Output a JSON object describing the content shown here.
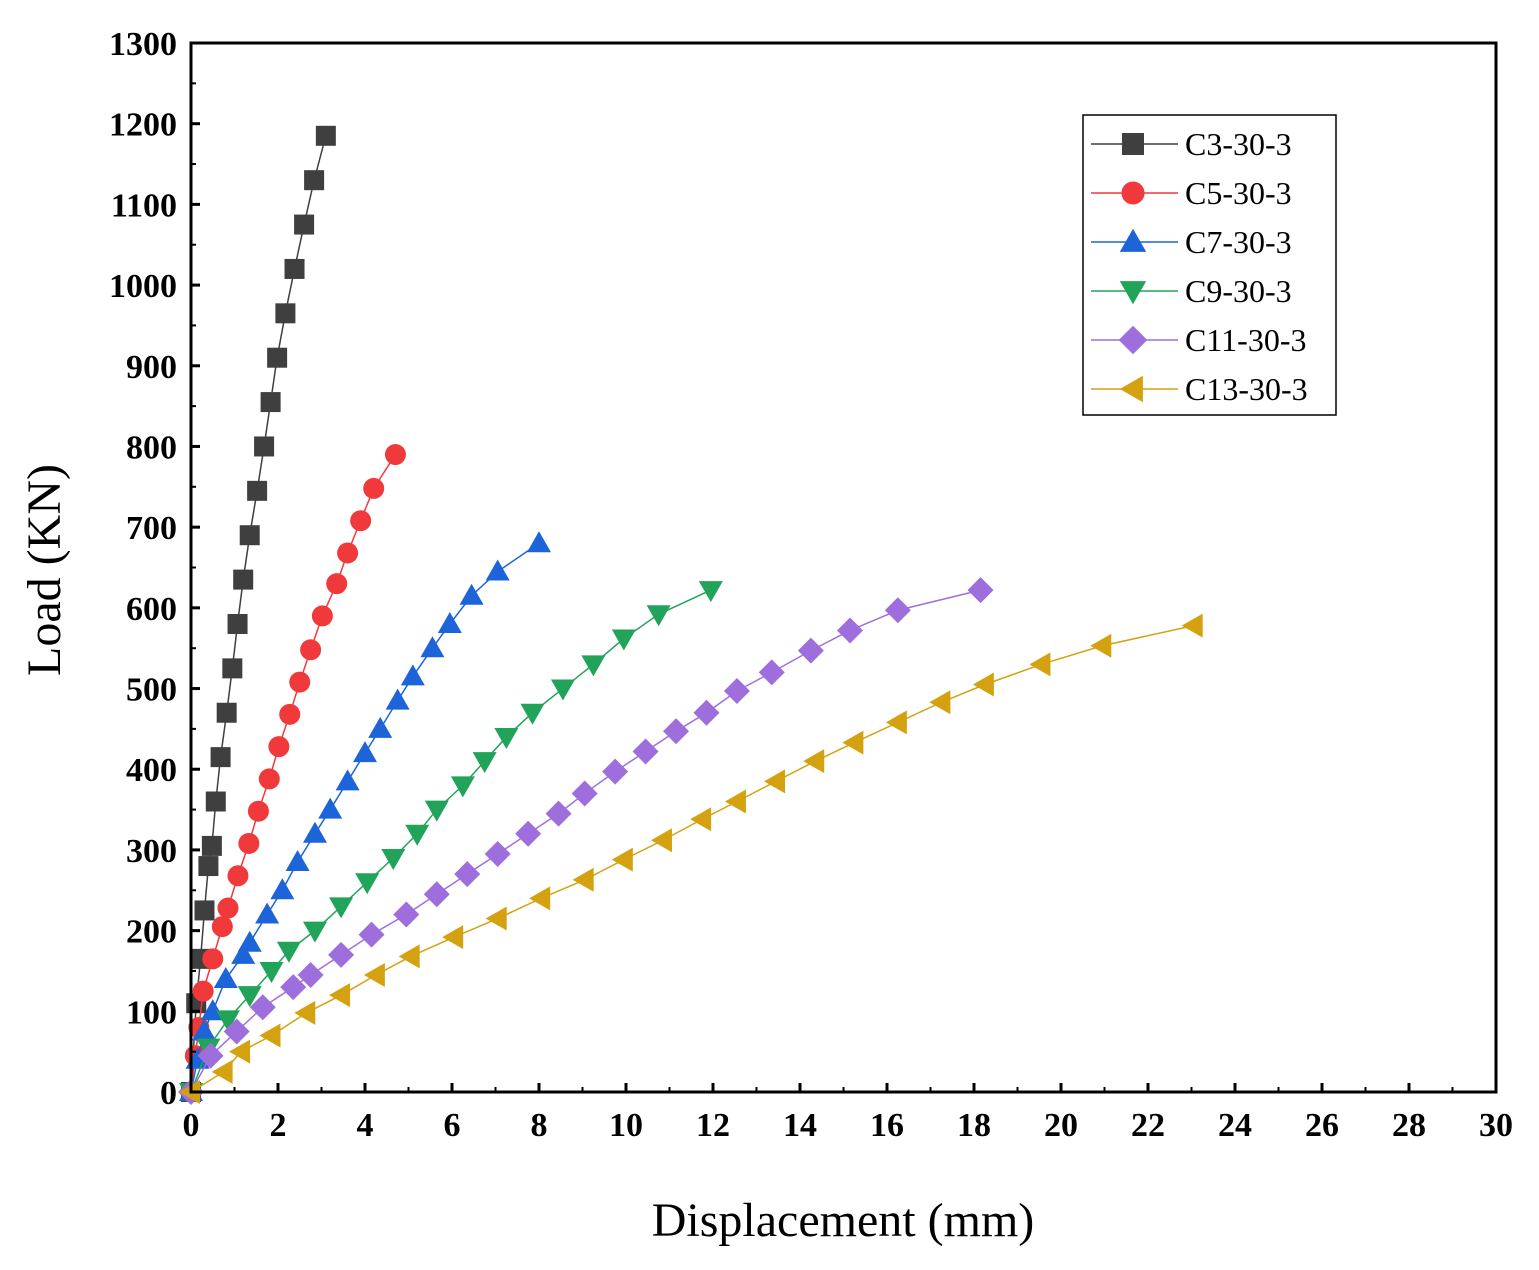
{
  "chart_data": {
    "type": "line",
    "title": "",
    "xlabel": "Displacement (mm)",
    "ylabel": "Load (KN)",
    "xlim": [
      0,
      30
    ],
    "ylim": [
      0,
      1300
    ],
    "x_ticks": [
      0,
      2,
      4,
      6,
      8,
      10,
      12,
      14,
      16,
      18,
      20,
      22,
      24,
      26,
      28,
      30
    ],
    "y_ticks": [
      0,
      100,
      200,
      300,
      400,
      500,
      600,
      700,
      800,
      900,
      1000,
      1100,
      1200,
      1300
    ],
    "x_tick_labels": [
      "0",
      "2",
      "4",
      "6",
      "8",
      "10",
      "12",
      "14",
      "16",
      "18",
      "20",
      "22",
      "24",
      "26",
      "28",
      "30"
    ],
    "y_tick_labels": [
      "0",
      "100",
      "200",
      "300",
      "400",
      "500",
      "600",
      "700",
      "800",
      "900",
      "1000",
      "1100",
      "1200",
      "1300"
    ],
    "grid": false,
    "legend_position": "top-right",
    "series": [
      {
        "name": "C3-30-3",
        "color": "#3f3f3f",
        "marker": "square",
        "x": [
          0.0,
          0.12,
          0.22,
          0.31,
          0.4,
          0.48,
          0.57,
          0.68,
          0.82,
          0.95,
          1.07,
          1.2,
          1.35,
          1.52,
          1.68,
          1.83,
          1.98,
          2.17,
          2.38,
          2.6,
          2.83,
          3.1
        ],
        "y": [
          0,
          110,
          165,
          225,
          280,
          305,
          360,
          415,
          470,
          525,
          580,
          635,
          690,
          745,
          800,
          855,
          910,
          965,
          1020,
          1075,
          1130,
          1185
        ]
      },
      {
        "name": "C5-30-3",
        "color": "#f0393b",
        "marker": "circle",
        "x": [
          0.0,
          0.1,
          0.18,
          0.28,
          0.5,
          0.72,
          0.85,
          1.08,
          1.33,
          1.55,
          1.8,
          2.02,
          2.27,
          2.5,
          2.75,
          3.02,
          3.35,
          3.6,
          3.9,
          4.2,
          4.7
        ],
        "y": [
          0,
          45,
          80,
          125,
          165,
          205,
          228,
          268,
          308,
          348,
          388,
          428,
          468,
          508,
          548,
          590,
          630,
          668,
          708,
          748,
          790
        ]
      },
      {
        "name": "C7-30-3",
        "color": "#1c64d8",
        "marker": "triangle-up",
        "x": [
          0.0,
          0.15,
          0.3,
          0.5,
          0.8,
          1.2,
          1.35,
          1.75,
          2.1,
          2.45,
          2.85,
          3.2,
          3.6,
          4.0,
          4.35,
          4.75,
          5.1,
          5.55,
          5.95,
          6.45,
          7.05,
          8.0
        ],
        "y": [
          0,
          40,
          75,
          100,
          140,
          170,
          185,
          220,
          250,
          285,
          320,
          350,
          385,
          420,
          450,
          485,
          515,
          550,
          580,
          615,
          645,
          680
        ]
      },
      {
        "name": "C9-30-3",
        "color": "#22a35a",
        "marker": "triangle-down",
        "x": [
          0.0,
          0.4,
          0.85,
          1.35,
          1.85,
          2.25,
          2.85,
          3.45,
          4.05,
          4.65,
          5.2,
          5.65,
          6.25,
          6.75,
          7.25,
          7.85,
          8.55,
          9.25,
          9.95,
          10.75,
          11.95
        ],
        "y": [
          0,
          55,
          90,
          120,
          150,
          175,
          200,
          230,
          260,
          290,
          320,
          350,
          380,
          410,
          440,
          470,
          500,
          530,
          562,
          592,
          622
        ]
      },
      {
        "name": "C11-30-3",
        "color": "#9e6fdc",
        "marker": "diamond",
        "x": [
          0.0,
          0.45,
          1.05,
          1.65,
          2.35,
          2.75,
          3.45,
          4.15,
          4.95,
          5.65,
          6.35,
          7.05,
          7.75,
          8.45,
          9.05,
          9.75,
          10.45,
          11.15,
          11.85,
          12.55,
          13.35,
          14.25,
          15.15,
          16.25,
          18.15
        ],
        "y": [
          0,
          45,
          75,
          105,
          130,
          145,
          170,
          195,
          220,
          245,
          270,
          295,
          320,
          345,
          370,
          397,
          422,
          447,
          470,
          497,
          520,
          547,
          572,
          597,
          622
        ]
      },
      {
        "name": "C13-30-3",
        "color": "#d4a210",
        "marker": "triangle-left",
        "x": [
          0.0,
          0.75,
          1.15,
          1.85,
          2.65,
          3.45,
          4.25,
          5.05,
          6.05,
          7.05,
          8.05,
          9.05,
          9.95,
          10.85,
          11.75,
          12.55,
          13.45,
          14.35,
          15.25,
          16.25,
          17.25,
          18.25,
          19.55,
          20.95,
          23.05
        ],
        "y": [
          0,
          25,
          50,
          70,
          98,
          120,
          145,
          168,
          192,
          215,
          240,
          263,
          288,
          312,
          338,
          360,
          385,
          410,
          433,
          458,
          483,
          505,
          530,
          553,
          578
        ]
      }
    ]
  }
}
